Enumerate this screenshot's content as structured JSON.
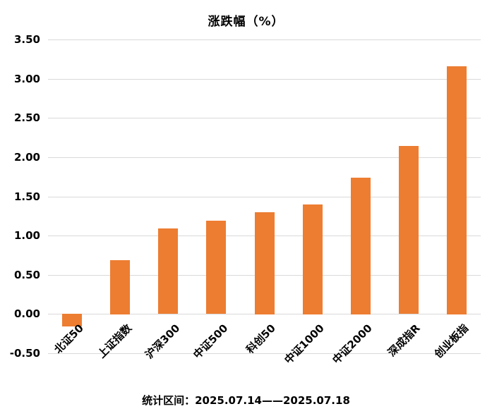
{
  "title": "涨跌幅（%）",
  "footer": {
    "text": "统计区间：2025.07.14——2025.07.18"
  },
  "colors": {
    "bar": "#ED7D31",
    "gridline": "#D9D9D9",
    "text": "#000000",
    "background": "#FFFFFF"
  },
  "chart_data": {
    "type": "bar",
    "title": "涨跌幅（%）",
    "xlabel": "",
    "ylabel": "",
    "categories": [
      "北证50",
      "上证指数",
      "沪深300",
      "中证500",
      "科创50",
      "中证1000",
      "中证2000",
      "深成指R",
      "创业板指"
    ],
    "values": [
      -0.16,
      0.69,
      1.09,
      1.19,
      1.3,
      1.4,
      1.74,
      2.14,
      3.16
    ],
    "ylim": [
      -0.5,
      3.5
    ],
    "ytick_step": 0.5,
    "yticks": [
      "3.50",
      "3.00",
      "2.50",
      "2.00",
      "1.50",
      "1.00",
      "0.50",
      "0.00",
      "-0.50"
    ],
    "grid": true,
    "legend": "none",
    "bar_color": "#ED7D31",
    "annotation": "统计区间：2025.07.14——2025.07.18"
  }
}
